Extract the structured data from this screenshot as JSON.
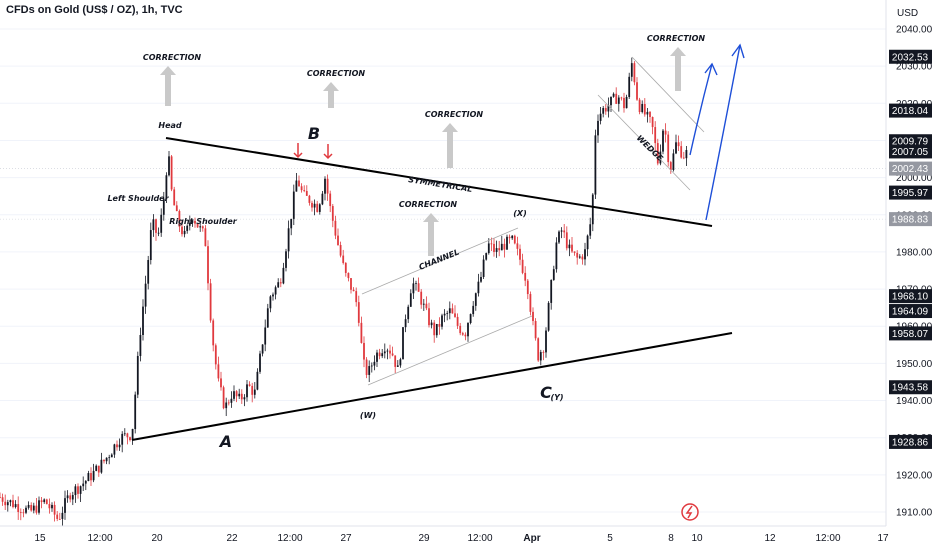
{
  "title": "CFDs on Gold (US$ / OZ), 1h, TVC",
  "currency": "USD",
  "chart_data": {
    "type": "candlestick",
    "ylim": [
      1906,
      2043
    ],
    "y_ticks": [
      1910,
      1920,
      1930,
      1940,
      1950,
      1960,
      1970,
      1980,
      1990,
      2000,
      2010,
      2020,
      2030,
      2040
    ],
    "y_tick_labels": [
      "1910.00",
      "1920.00",
      "1930.00",
      "1940.00",
      "1950.00",
      "1960.00",
      "1970.00",
      "1980.00",
      "1990.00",
      "2000.00",
      "2010.00",
      "2020.00",
      "2030.00",
      "2040.00"
    ],
    "x_ticks": [
      "15",
      "12:00",
      "20",
      "22",
      "12:00",
      "27",
      "29",
      "12:00",
      "Apr",
      "5",
      "8",
      "10",
      "12",
      "12:00",
      "17"
    ],
    "price_tags": [
      {
        "value": 2032.53,
        "label": "2032.53",
        "color": "#131722"
      },
      {
        "value": 2018.04,
        "label": "2018.04",
        "color": "#131722"
      },
      {
        "value": 2009.79,
        "label": "2009.79",
        "color": "#131722"
      },
      {
        "value": 2007.05,
        "label": "2007.05",
        "color": "#131722"
      },
      {
        "value": 2002.43,
        "label": "2002.43",
        "color": "#9598a1"
      },
      {
        "value": 1995.97,
        "label": "1995.97",
        "color": "#131722"
      },
      {
        "value": 1988.83,
        "label": "1988.83",
        "color": "#9598a1"
      },
      {
        "value": 1968.1,
        "label": "1968.10",
        "color": "#131722"
      },
      {
        "value": 1964.09,
        "label": "1964.09",
        "color": "#131722"
      },
      {
        "value": 1958.07,
        "label": "1958.07",
        "color": "#131722"
      },
      {
        "value": 1943.58,
        "label": "1943.58",
        "color": "#131722"
      },
      {
        "value": 1928.86,
        "label": "1928.86",
        "color": "#131722"
      }
    ],
    "annotations": {
      "corrections": [
        "CORRECTION",
        "CORRECTION",
        "CORRECTION",
        "CORRECTION",
        "CORRECTION"
      ],
      "head": "Head",
      "left_shoulder": "Left Shoulder",
      "right_shoulder": "Right Shoulder",
      "symmetrical": "SYMMETRICAL",
      "channel": "CHANNEL",
      "wedge": "WEDGE",
      "wave_a": "A",
      "wave_b": "B",
      "wave_c": "C",
      "wave_w": "(W)",
      "wave_x": "(X)",
      "wave_y": "(Y)"
    },
    "colors": {
      "up": "#131722",
      "down": "#e0393e",
      "label_blue": "#2962ff",
      "label_red": "#e0393e",
      "arrow": "#1e4fd8"
    }
  }
}
